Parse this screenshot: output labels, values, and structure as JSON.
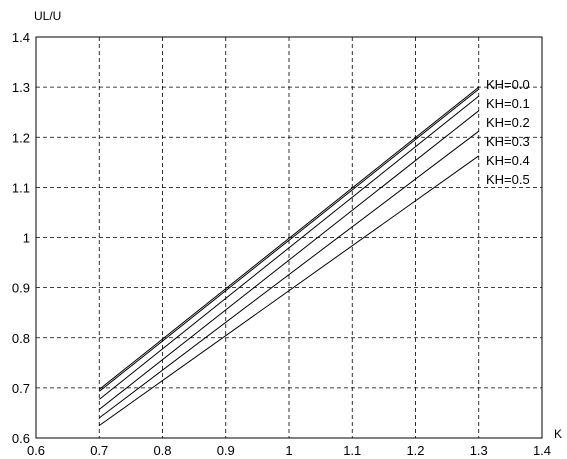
{
  "chart_data": {
    "type": "line",
    "title": "",
    "xlabel": "K",
    "ylabel": "UL/U",
    "xlim": [
      0.6,
      1.4
    ],
    "ylim": [
      0.6,
      1.4
    ],
    "x_ticks": [
      "0.6",
      "0.7",
      "0.8",
      "0.9",
      "1",
      "1.1",
      "1.2",
      "1.3",
      "1.4"
    ],
    "y_ticks": [
      "0.6",
      "0.7",
      "0.8",
      "0.9",
      "1",
      "1.1",
      "1.2",
      "1.3",
      "1.4"
    ],
    "grid": true,
    "grid_style": "dashed",
    "x": [
      0.7,
      1.3
    ],
    "series": [
      {
        "name": "KH=0.0",
        "values": [
          0.697,
          1.3
        ]
      },
      {
        "name": "KH=0.1",
        "values": [
          0.693,
          1.296
        ]
      },
      {
        "name": "KH=0.2",
        "values": [
          0.677,
          1.282
        ]
      },
      {
        "name": "KH=0.3",
        "values": [
          0.657,
          1.253
        ]
      },
      {
        "name": "KH=0.4",
        "values": [
          0.64,
          1.212
        ]
      },
      {
        "name": "KH=0.5",
        "values": [
          0.625,
          1.163
        ]
      }
    ],
    "legend_placement": "right end of lines"
  }
}
